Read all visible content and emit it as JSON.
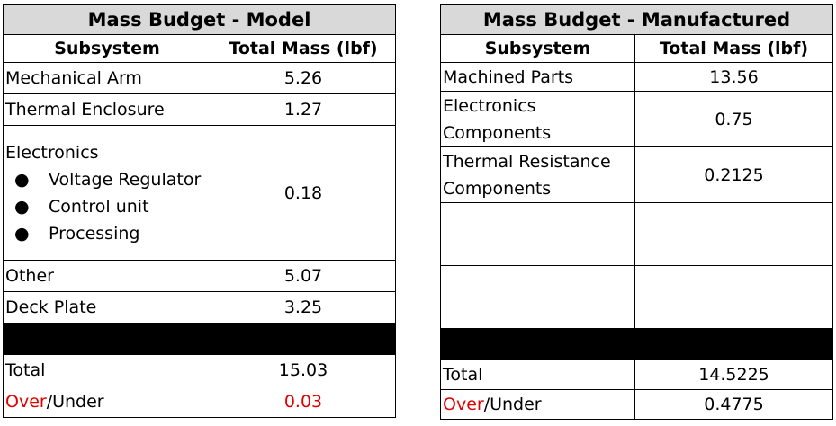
{
  "model": {
    "title": "Mass Budget - Model",
    "col_subsystem": "Subsystem",
    "col_mass": "Total Mass (lbf)",
    "rows": [
      {
        "subsystem": "Mechanical Arm",
        "mass": "5.26"
      },
      {
        "subsystem": "Thermal Enclosure",
        "mass": "1.27"
      },
      {
        "subsystem": "Electronics",
        "mass": "0.18",
        "bullets": [
          "Voltage Regulator",
          "Control unit",
          "Processing"
        ]
      },
      {
        "subsystem": "Other",
        "mass": "5.07"
      },
      {
        "subsystem": "Deck Plate",
        "mass": "3.25"
      }
    ],
    "total_label": "Total",
    "total_value": "15.03",
    "over_label": "Over",
    "under_label": "/Under",
    "over_under_value": "0.03"
  },
  "manufactured": {
    "title": "Mass Budget - Manufactured",
    "col_subsystem": "Subsystem",
    "col_mass": "Total Mass (lbf)",
    "rows": [
      {
        "subsystem": "Machined Parts",
        "mass": "13.56"
      },
      {
        "subsystem": "Electronics Components",
        "mass": "0.75"
      },
      {
        "subsystem": "Thermal Resistance Components",
        "mass": "0.2125"
      }
    ],
    "total_label": "Total",
    "total_value": "14.5225",
    "over_label": "Over",
    "under_label": "/Under",
    "over_under_value": "0.4775"
  },
  "colors": {
    "title_bg": "#d9d9d9",
    "over_text": "#e00000",
    "separator": "#000000"
  }
}
